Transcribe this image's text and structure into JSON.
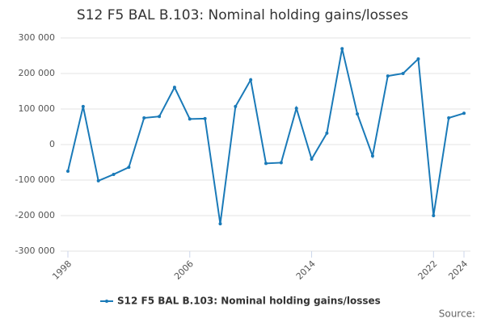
{
  "chart_data": {
    "type": "line",
    "title": "S12 F5 BAL B.103: Nominal holding gains/losses",
    "x": [
      1998,
      1999,
      2000,
      2001,
      2002,
      2003,
      2004,
      2005,
      2006,
      2007,
      2008,
      2009,
      2010,
      2011,
      2012,
      2013,
      2014,
      2015,
      2016,
      2017,
      2018,
      2019,
      2020,
      2021,
      2022,
      2023,
      2024
    ],
    "series": [
      {
        "name": "S12 F5 BAL B.103: Nominal holding gains/losses",
        "color": "#1a7ab8",
        "values": [
          -75000,
          107000,
          -102000,
          -84000,
          -64000,
          75000,
          79000,
          161000,
          72000,
          73000,
          -223000,
          107000,
          182000,
          -53000,
          -51000,
          102000,
          -41000,
          32000,
          270000,
          86000,
          -32000,
          193000,
          200000,
          241000,
          -200000,
          75000,
          88000
        ]
      }
    ],
    "xlim": [
      1998,
      2024
    ],
    "xticks": [
      1998,
      2006,
      2014,
      2022,
      2024
    ],
    "ylim": [
      -300000,
      300000
    ],
    "yticks": [
      {
        "value": -300000,
        "label": "-300 000"
      },
      {
        "value": -200000,
        "label": "-200 000"
      },
      {
        "value": -100000,
        "label": "-100 000"
      },
      0,
      {
        "value": 100000,
        "label": "100 000"
      },
      {
        "value": 200000,
        "label": "200 000"
      },
      {
        "value": 300000,
        "label": "300 000"
      }
    ],
    "grid": true,
    "source": "Source:"
  }
}
